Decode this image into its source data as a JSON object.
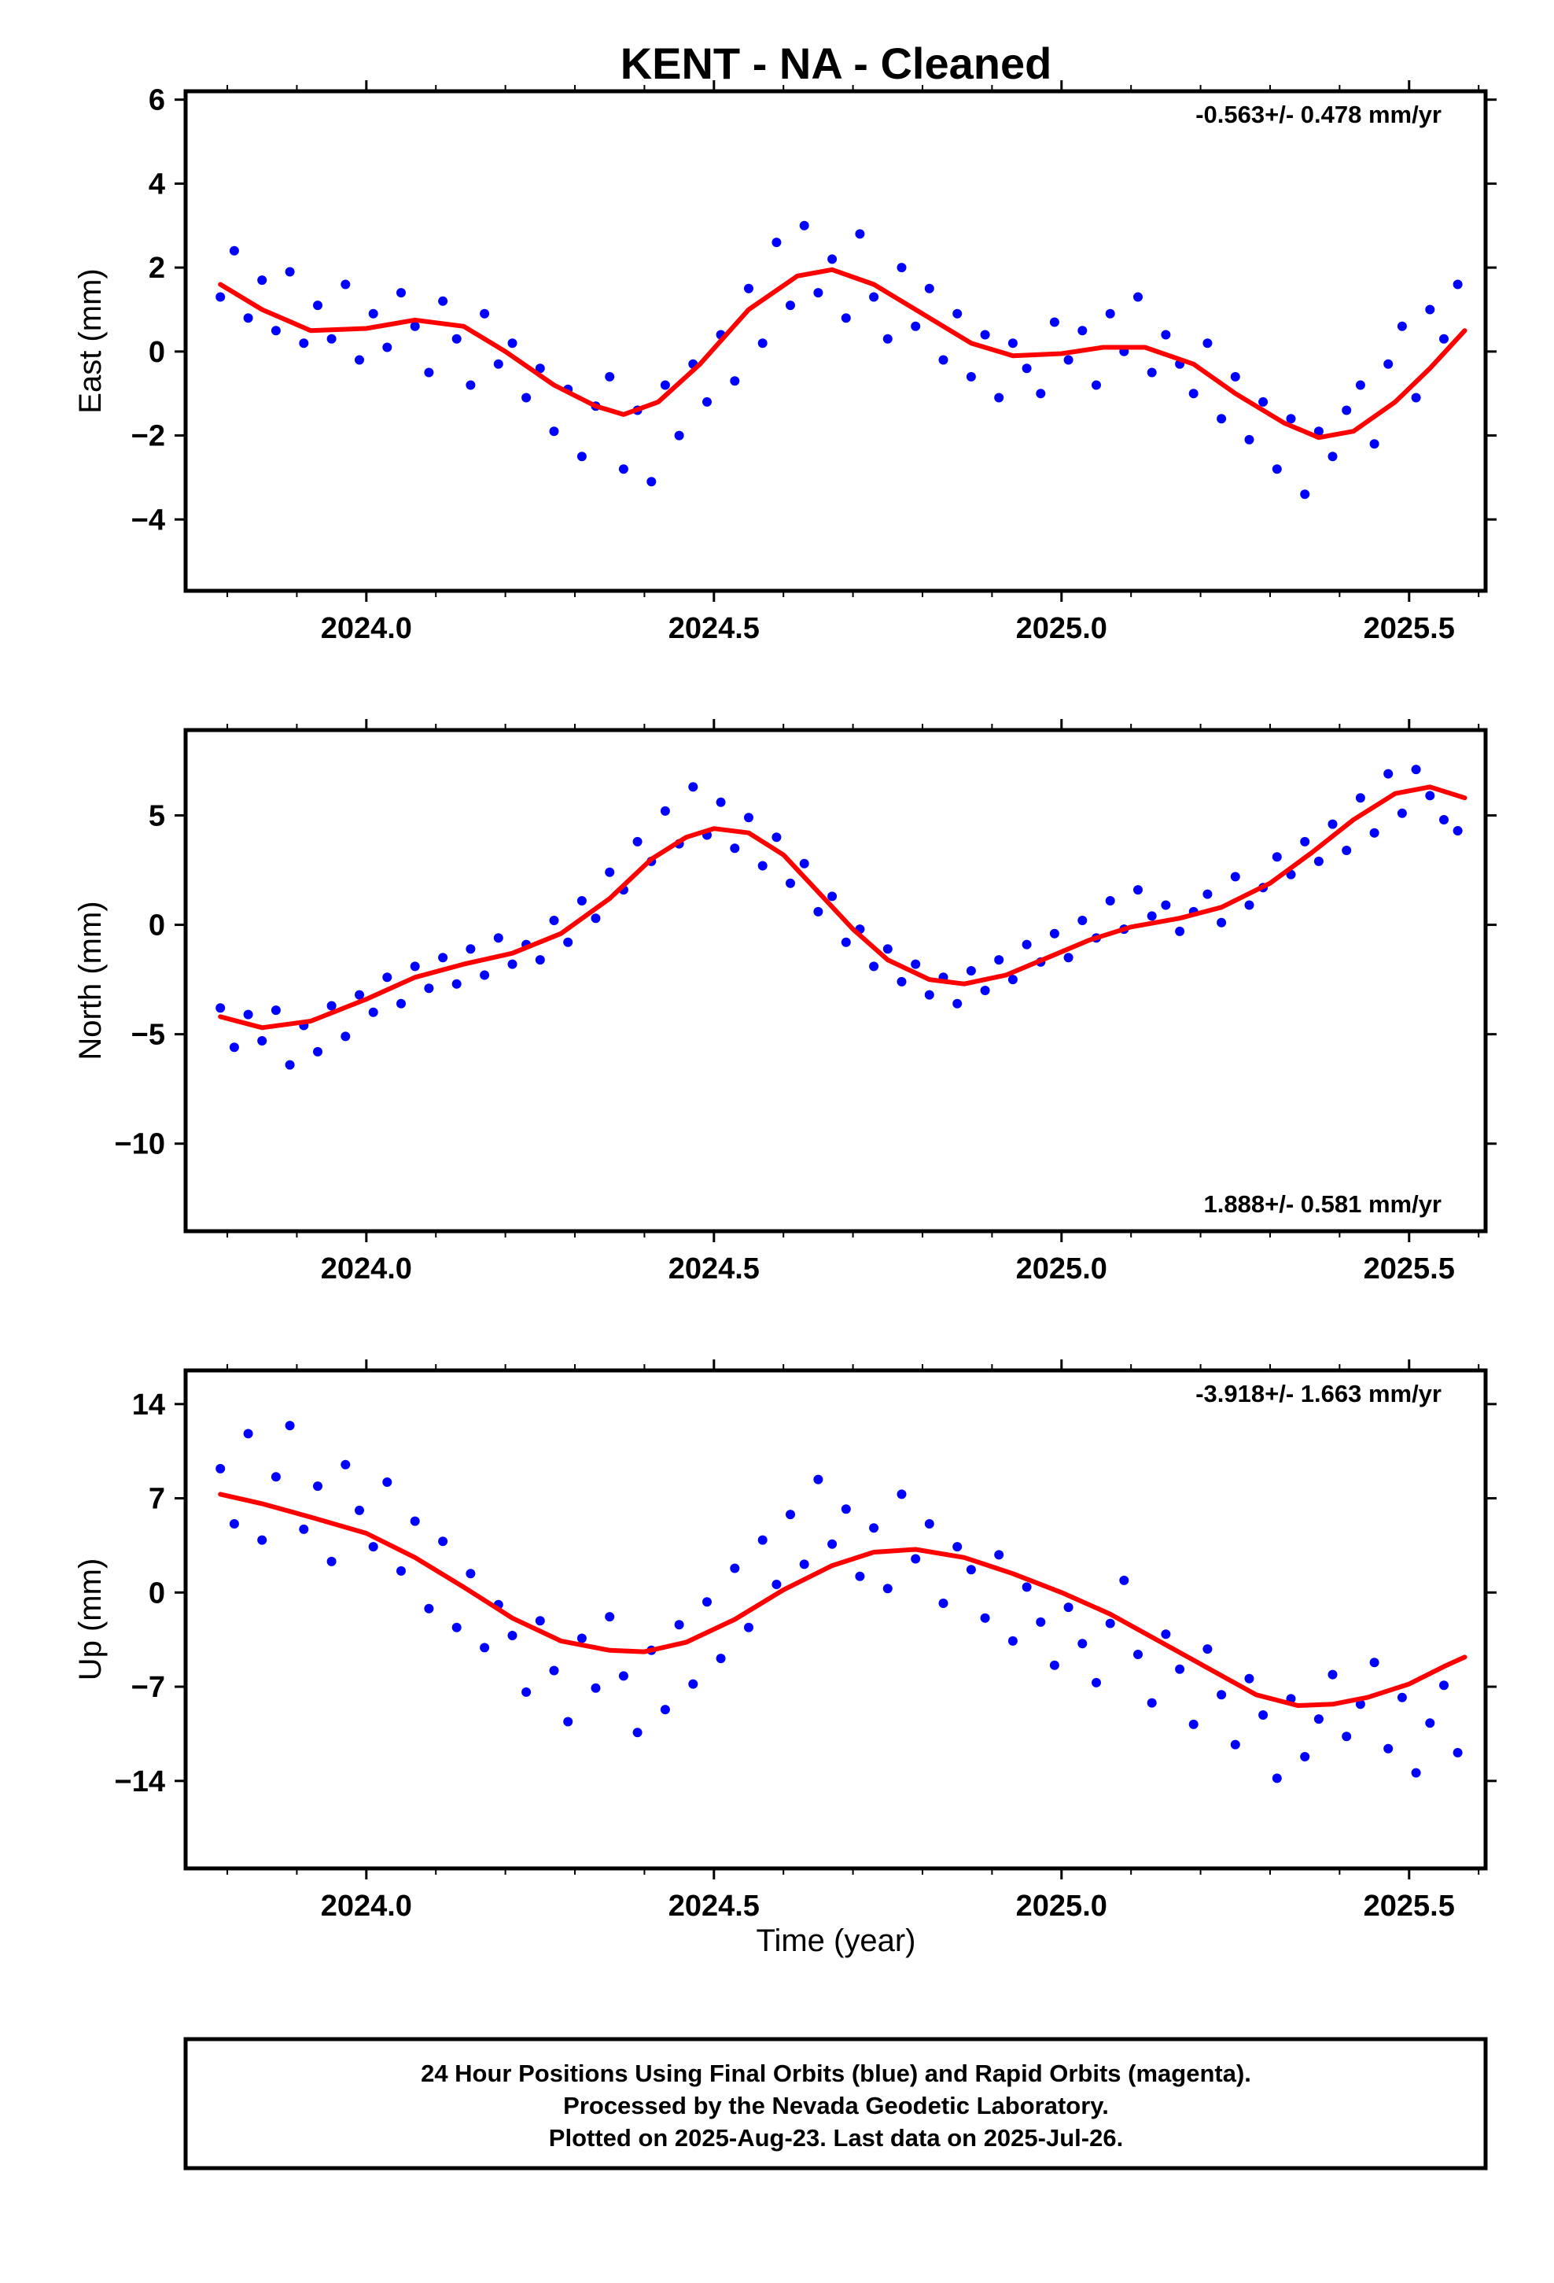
{
  "title": "KENT  - NA - Cleaned",
  "colors": {
    "data": "#0000ff",
    "fit": "#ff0000",
    "frame": "#000000"
  },
  "chart_data": [
    {
      "type": "scatter",
      "component": "East",
      "ylabel": "East (mm)",
      "rate_label": "-0.563+/- 0.478 mm/yr",
      "rate_placement": "top-right",
      "xlim": [
        2023.74,
        2025.61
      ],
      "ylim": [
        -5.7,
        6.2
      ],
      "x_ticks": [
        2024.0,
        2024.5,
        2025.0,
        2025.5
      ],
      "x_tick_labels": [
        "2024.0",
        "2024.5",
        "2025.0",
        "2025.5"
      ],
      "y_ticks": [
        -4,
        -2,
        0,
        2,
        4,
        6
      ],
      "y_tick_labels": [
        "−4",
        "−2",
        "0",
        "2",
        "4",
        "6"
      ],
      "fit": {
        "x": [
          2023.79,
          2023.85,
          2023.92,
          2024.0,
          2024.07,
          2024.14,
          2024.2,
          2024.27,
          2024.33,
          2024.37,
          2024.42,
          2024.48,
          2024.55,
          2024.62,
          2024.67,
          2024.73,
          2024.8,
          2024.87,
          2024.93,
          2025.0,
          2025.06,
          2025.12,
          2025.19,
          2025.25,
          2025.32,
          2025.37,
          2025.42,
          2025.48,
          2025.53,
          2025.58
        ],
        "y": [
          1.6,
          1.0,
          0.5,
          0.55,
          0.75,
          0.6,
          0.0,
          -0.8,
          -1.3,
          -1.5,
          -1.2,
          -0.3,
          1.0,
          1.8,
          1.95,
          1.6,
          0.9,
          0.2,
          -0.1,
          -0.05,
          0.1,
          0.1,
          -0.3,
          -1.0,
          -1.7,
          -2.05,
          -1.9,
          -1.2,
          -0.4,
          0.5
        ]
      },
      "points": {
        "x": [
          2023.79,
          2023.81,
          2023.83,
          2023.85,
          2023.87,
          2023.89,
          2023.91,
          2023.93,
          2023.95,
          2023.97,
          2023.99,
          2024.01,
          2024.03,
          2024.05,
          2024.07,
          2024.09,
          2024.11,
          2024.13,
          2024.15,
          2024.17,
          2024.19,
          2024.21,
          2024.23,
          2024.25,
          2024.27,
          2024.29,
          2024.31,
          2024.33,
          2024.35,
          2024.37,
          2024.39,
          2024.41,
          2024.43,
          2024.45,
          2024.47,
          2024.49,
          2024.51,
          2024.53,
          2024.55,
          2024.57,
          2024.59,
          2024.61,
          2024.63,
          2024.65,
          2024.67,
          2024.69,
          2024.71,
          2024.73,
          2024.75,
          2024.77,
          2024.79,
          2024.81,
          2024.83,
          2024.85,
          2024.87,
          2024.89,
          2024.91,
          2024.93,
          2024.95,
          2024.97,
          2024.99,
          2025.01,
          2025.03,
          2025.05,
          2025.07,
          2025.09,
          2025.11,
          2025.13,
          2025.15,
          2025.17,
          2025.19,
          2025.21,
          2025.23,
          2025.25,
          2025.27,
          2025.29,
          2025.31,
          2025.33,
          2025.35,
          2025.37,
          2025.39,
          2025.41,
          2025.43,
          2025.45,
          2025.47,
          2025.49,
          2025.51,
          2025.53,
          2025.55,
          2025.57
        ],
        "y": [
          1.3,
          2.4,
          0.8,
          1.7,
          0.5,
          1.9,
          0.2,
          1.1,
          0.3,
          1.6,
          -0.2,
          0.9,
          0.1,
          1.4,
          0.6,
          -0.5,
          1.2,
          0.3,
          -0.8,
          0.9,
          -0.3,
          0.2,
          -1.1,
          -0.4,
          -1.9,
          -0.9,
          -2.5,
          -1.3,
          -0.6,
          -2.8,
          -1.4,
          -3.1,
          -0.8,
          -2.0,
          -0.3,
          -1.2,
          0.4,
          -0.7,
          1.5,
          0.2,
          2.6,
          1.1,
          3.0,
          1.4,
          2.2,
          0.8,
          2.8,
          1.3,
          0.3,
          2.0,
          0.6,
          1.5,
          -0.2,
          0.9,
          -0.6,
          0.4,
          -1.1,
          0.2,
          -0.4,
          -1.0,
          0.7,
          -0.2,
          0.5,
          -0.8,
          0.9,
          0.0,
          1.3,
          -0.5,
          0.4,
          -0.3,
          -1.0,
          0.2,
          -1.6,
          -0.6,
          -2.1,
          -1.2,
          -2.8,
          -1.6,
          -3.4,
          -1.9,
          -2.5,
          -1.4,
          -0.8,
          -2.2,
          -0.3,
          0.6,
          -1.1,
          1.0,
          0.3,
          1.6
        ]
      }
    },
    {
      "type": "scatter",
      "component": "North",
      "ylabel": "North (mm)",
      "rate_label": "1.888+/- 0.581 mm/yr",
      "rate_placement": "bottom-right",
      "xlim": [
        2023.74,
        2025.61
      ],
      "ylim": [
        -14.0,
        8.9
      ],
      "x_ticks": [
        2024.0,
        2024.5,
        2025.0,
        2025.5
      ],
      "x_tick_labels": [
        "2024.0",
        "2024.5",
        "2025.0",
        "2025.5"
      ],
      "y_ticks": [
        -10,
        -5,
        0,
        5
      ],
      "y_tick_labels": [
        "−10",
        "−5",
        "0",
        "5"
      ],
      "fit": {
        "x": [
          2023.79,
          2023.85,
          2023.92,
          2024.0,
          2024.07,
          2024.14,
          2024.21,
          2024.28,
          2024.35,
          2024.41,
          2024.46,
          2024.5,
          2024.55,
          2024.6,
          2024.65,
          2024.7,
          2024.75,
          2024.81,
          2024.86,
          2024.92,
          2024.98,
          2025.04,
          2025.1,
          2025.17,
          2025.23,
          2025.3,
          2025.36,
          2025.42,
          2025.48,
          2025.53,
          2025.58
        ],
        "y": [
          -4.2,
          -4.7,
          -4.4,
          -3.4,
          -2.4,
          -1.8,
          -1.3,
          -0.4,
          1.2,
          3.0,
          4.0,
          4.4,
          4.2,
          3.2,
          1.5,
          -0.2,
          -1.6,
          -2.5,
          -2.7,
          -2.3,
          -1.5,
          -0.7,
          -0.1,
          0.3,
          0.8,
          1.9,
          3.3,
          4.8,
          6.0,
          6.3,
          5.8
        ]
      },
      "points": {
        "x": [
          2023.79,
          2023.81,
          2023.83,
          2023.85,
          2023.87,
          2023.89,
          2023.91,
          2023.93,
          2023.95,
          2023.97,
          2023.99,
          2024.01,
          2024.03,
          2024.05,
          2024.07,
          2024.09,
          2024.11,
          2024.13,
          2024.15,
          2024.17,
          2024.19,
          2024.21,
          2024.23,
          2024.25,
          2024.27,
          2024.29,
          2024.31,
          2024.33,
          2024.35,
          2024.37,
          2024.39,
          2024.41,
          2024.43,
          2024.45,
          2024.47,
          2024.49,
          2024.51,
          2024.53,
          2024.55,
          2024.57,
          2024.59,
          2024.61,
          2024.63,
          2024.65,
          2024.67,
          2024.69,
          2024.71,
          2024.73,
          2024.75,
          2024.77,
          2024.79,
          2024.81,
          2024.83,
          2024.85,
          2024.87,
          2024.89,
          2024.91,
          2024.93,
          2024.95,
          2024.97,
          2024.99,
          2025.01,
          2025.03,
          2025.05,
          2025.07,
          2025.09,
          2025.11,
          2025.13,
          2025.15,
          2025.17,
          2025.19,
          2025.21,
          2025.23,
          2025.25,
          2025.27,
          2025.29,
          2025.31,
          2025.33,
          2025.35,
          2025.37,
          2025.39,
          2025.41,
          2025.43,
          2025.45,
          2025.47,
          2025.49,
          2025.51,
          2025.53,
          2025.55,
          2025.57
        ],
        "y": [
          -3.8,
          -5.6,
          -4.1,
          -5.3,
          -3.9,
          -6.4,
          -4.6,
          -5.8,
          -3.7,
          -5.1,
          -3.2,
          -4.0,
          -2.4,
          -3.6,
          -1.9,
          -2.9,
          -1.5,
          -2.7,
          -1.1,
          -2.3,
          -0.6,
          -1.8,
          -0.9,
          -1.6,
          0.2,
          -0.8,
          1.1,
          0.3,
          2.4,
          1.6,
          3.8,
          2.9,
          5.2,
          3.7,
          6.3,
          4.1,
          5.6,
          3.5,
          4.9,
          2.7,
          4.0,
          1.9,
          2.8,
          0.6,
          1.3,
          -0.8,
          -0.2,
          -1.9,
          -1.1,
          -2.6,
          -1.8,
          -3.2,
          -2.4,
          -3.6,
          -2.1,
          -3.0,
          -1.6,
          -2.5,
          -0.9,
          -1.7,
          -0.4,
          -1.5,
          0.2,
          -0.6,
          1.1,
          -0.2,
          1.6,
          0.4,
          0.9,
          -0.3,
          0.6,
          1.4,
          0.1,
          2.2,
          0.9,
          1.7,
          3.1,
          2.3,
          3.8,
          2.9,
          4.6,
          3.4,
          5.8,
          4.2,
          6.9,
          5.1,
          7.1,
          5.9,
          4.8,
          4.3
        ]
      }
    },
    {
      "type": "scatter",
      "component": "Up",
      "ylabel": "Up (mm)",
      "rate_label": "-3.918+/- 1.663 mm/yr",
      "rate_placement": "top-right",
      "xlim": [
        2023.74,
        2025.61
      ],
      "ylim": [
        -20.5,
        16.5
      ],
      "x_ticks": [
        2024.0,
        2024.5,
        2025.0,
        2025.5
      ],
      "x_tick_labels": [
        "2024.0",
        "2024.5",
        "2025.0",
        "2025.5"
      ],
      "xlabel": "Time (year)",
      "y_ticks": [
        -14,
        -7,
        0,
        7,
        14
      ],
      "y_tick_labels": [
        "−14",
        "−7",
        "0",
        "7",
        "14"
      ],
      "fit": {
        "x": [
          2023.79,
          2023.85,
          2023.92,
          2024.0,
          2024.07,
          2024.14,
          2024.21,
          2024.28,
          2024.35,
          2024.4,
          2024.46,
          2024.53,
          2024.6,
          2024.67,
          2024.73,
          2024.79,
          2024.86,
          2024.93,
          2025.0,
          2025.07,
          2025.14,
          2025.21,
          2025.28,
          2025.34,
          2025.39,
          2025.44,
          2025.5,
          2025.55,
          2025.58
        ],
        "y": [
          7.3,
          6.6,
          5.6,
          4.4,
          2.6,
          0.4,
          -1.9,
          -3.6,
          -4.3,
          -4.4,
          -3.7,
          -2.0,
          0.2,
          2.0,
          3.0,
          3.2,
          2.6,
          1.4,
          0.0,
          -1.6,
          -3.6,
          -5.6,
          -7.6,
          -8.4,
          -8.3,
          -7.8,
          -6.8,
          -5.5,
          -4.8
        ]
      },
      "points": {
        "x": [
          2023.79,
          2023.81,
          2023.83,
          2023.85,
          2023.87,
          2023.89,
          2023.91,
          2023.93,
          2023.95,
          2023.97,
          2023.99,
          2024.01,
          2024.03,
          2024.05,
          2024.07,
          2024.09,
          2024.11,
          2024.13,
          2024.15,
          2024.17,
          2024.19,
          2024.21,
          2024.23,
          2024.25,
          2024.27,
          2024.29,
          2024.31,
          2024.33,
          2024.35,
          2024.37,
          2024.39,
          2024.41,
          2024.43,
          2024.45,
          2024.47,
          2024.49,
          2024.51,
          2024.53,
          2024.55,
          2024.57,
          2024.59,
          2024.61,
          2024.63,
          2024.65,
          2024.67,
          2024.69,
          2024.71,
          2024.73,
          2024.75,
          2024.77,
          2024.79,
          2024.81,
          2024.83,
          2024.85,
          2024.87,
          2024.89,
          2024.91,
          2024.93,
          2024.95,
          2024.97,
          2024.99,
          2025.01,
          2025.03,
          2025.05,
          2025.07,
          2025.09,
          2025.11,
          2025.13,
          2025.15,
          2025.17,
          2025.19,
          2025.21,
          2025.23,
          2025.25,
          2025.27,
          2025.29,
          2025.31,
          2025.33,
          2025.35,
          2025.37,
          2025.39,
          2025.41,
          2025.43,
          2025.45,
          2025.47,
          2025.49,
          2025.51,
          2025.53,
          2025.55,
          2025.57
        ],
        "y": [
          9.2,
          5.1,
          11.8,
          3.9,
          8.6,
          12.4,
          4.7,
          7.9,
          2.3,
          9.5,
          6.1,
          3.4,
          8.2,
          1.6,
          5.3,
          -1.2,
          3.8,
          -2.6,
          1.4,
          -4.1,
          -0.9,
          -3.2,
          -7.4,
          -2.1,
          -5.8,
          -9.6,
          -3.4,
          -7.1,
          -1.8,
          -6.2,
          -10.4,
          -4.3,
          -8.7,
          -2.4,
          -6.8,
          -0.7,
          -4.9,
          1.8,
          -2.6,
          3.9,
          0.6,
          5.8,
          2.1,
          8.4,
          3.6,
          6.2,
          1.2,
          4.8,
          0.3,
          7.3,
          2.5,
          5.1,
          -0.8,
          3.4,
          1.7,
          -1.9,
          2.8,
          -3.6,
          0.4,
          -2.2,
          -5.4,
          -1.1,
          -3.8,
          -6.7,
          -2.3,
          0.9,
          -4.6,
          -8.2,
          -3.1,
          -5.7,
          -9.8,
          -4.2,
          -7.6,
          -11.3,
          -6.4,
          -9.1,
          -13.8,
          -7.9,
          -12.2,
          -9.4,
          -6.1,
          -10.7,
          -8.3,
          -5.2,
          -11.6,
          -7.8,
          -13.4,
          -9.7,
          -6.9,
          -11.9
        ]
      }
    }
  ],
  "footer": {
    "line1": "24 Hour Positions Using Final Orbits (blue) and Rapid Orbits (magenta).",
    "line2": "Processed by the Nevada Geodetic Laboratory.",
    "line3": "Plotted on 2025-Aug-23. Last data on 2025-Jul-26."
  }
}
